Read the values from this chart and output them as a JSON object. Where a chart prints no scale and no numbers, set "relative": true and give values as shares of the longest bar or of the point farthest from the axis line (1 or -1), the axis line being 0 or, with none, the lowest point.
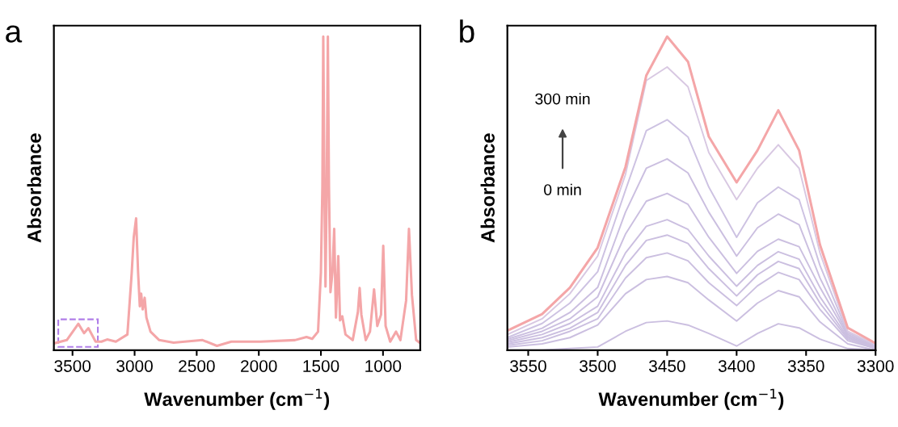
{
  "chart_data": [
    {
      "type": "line",
      "title": "a",
      "xlabel": "Wavenumber (cm$^{−1}$)",
      "ylabel": "Absorbance",
      "relative": true,
      "tick_labels": "x",
      "grid": false,
      "xlim": [
        3650,
        700
      ],
      "xticks": [
        3500,
        3000,
        2500,
        2000,
        1500,
        1000
      ],
      "x": [
        3640,
        3546,
        3453,
        3407,
        3372,
        3314,
        3267,
        3221,
        3151,
        3058,
        3023,
        3007,
        2988,
        2972,
        2958,
        2947,
        2935,
        2919,
        2905,
        2872,
        2802,
        2686,
        2453,
        2337,
        2221,
        1988,
        1709,
        1616,
        1570,
        1523,
        1500,
        1488,
        1481,
        1472,
        1463,
        1453,
        1444,
        1435,
        1423,
        1407,
        1393,
        1379,
        1360,
        1346,
        1328,
        1302,
        1244,
        1202,
        1188,
        1174,
        1139,
        1105,
        1072,
        1046,
        1016,
        998,
        979,
        942,
        895,
        860,
        814,
        791,
        767,
        733,
        700
      ],
      "series": [
        {
          "color": "#f4a6a8",
          "values": [
            0.0225,
            0.032,
            0.084,
            0.054,
            0.07,
            0.027,
            0.027,
            0.034,
            0.027,
            0.05,
            0.248,
            0.36,
            0.42,
            0.248,
            0.14,
            0.18,
            0.13,
            0.167,
            0.104,
            0.059,
            0.032,
            0.024,
            0.032,
            0.0135,
            0.027,
            0.027,
            0.032,
            0.042,
            0.036,
            0.059,
            0.248,
            0.52,
            1.0,
            0.52,
            0.203,
            0.52,
            1.0,
            0.52,
            0.185,
            0.248,
            0.387,
            0.104,
            0.3,
            0.095,
            0.108,
            0.05,
            0.032,
            0.122,
            0.198,
            0.113,
            0.032,
            0.059,
            0.194,
            0.077,
            0.113,
            0.333,
            0.077,
            0.027,
            0.059,
            0.032,
            0.158,
            0.387,
            0.176,
            0.032,
            0.0225
          ]
        }
      ]
    },
    {
      "type": "line",
      "title": "b",
      "xlabel": "Wavenumber (cm$^{−1}$)",
      "ylabel": "Absorbance",
      "relative": true,
      "tick_labels": "x",
      "grid": false,
      "xlim": [
        3565,
        3300
      ],
      "xticks": [
        3550,
        3500,
        3450,
        3400,
        3350,
        3300
      ],
      "annotations": [
        "300 min",
        "0 min"
      ],
      "x": [
        3565,
        3540,
        3520,
        3500,
        3480,
        3465,
        3450,
        3435,
        3420,
        3400,
        3385,
        3370,
        3355,
        3340,
        3320,
        3300
      ],
      "series": [
        {
          "color": "#cbbfe0",
          "values": [
            0,
            0,
            0.005,
            0.01,
            0.06,
            0.088,
            0.093,
            0.08,
            0.053,
            0.013,
            0.053,
            0.084,
            0.071,
            0.035,
            0.005,
            0
          ]
        },
        {
          "color": "#cbbfe0",
          "values": [
            0.01,
            0.02,
            0.04,
            0.08,
            0.18,
            0.225,
            0.235,
            0.215,
            0.16,
            0.093,
            0.15,
            0.19,
            0.17,
            0.09,
            0.02,
            0
          ]
        },
        {
          "color": "#cbbfe0",
          "values": [
            0.015,
            0.03,
            0.06,
            0.1,
            0.23,
            0.295,
            0.31,
            0.285,
            0.215,
            0.142,
            0.205,
            0.248,
            0.225,
            0.13,
            0.03,
            0.005
          ]
        },
        {
          "color": "#cbbfe0",
          "values": [
            0.02,
            0.04,
            0.07,
            0.12,
            0.27,
            0.35,
            0.367,
            0.34,
            0.26,
            0.173,
            0.24,
            0.283,
            0.26,
            0.15,
            0.035,
            0.005
          ]
        },
        {
          "color": "#cbbfe0",
          "values": [
            0.025,
            0.05,
            0.085,
            0.14,
            0.31,
            0.395,
            0.416,
            0.385,
            0.3,
            0.204,
            0.27,
            0.314,
            0.29,
            0.17,
            0.04,
            0.008
          ]
        },
        {
          "color": "#cbbfe0",
          "values": [
            0.03,
            0.06,
            0.1,
            0.17,
            0.37,
            0.475,
            0.5,
            0.465,
            0.36,
            0.245,
            0.315,
            0.354,
            0.33,
            0.2,
            0.045,
            0.01
          ]
        },
        {
          "color": "#cbbfe0",
          "values": [
            0.035,
            0.07,
            0.12,
            0.2,
            0.44,
            0.58,
            0.61,
            0.565,
            0.44,
            0.3,
            0.39,
            0.434,
            0.4,
            0.23,
            0.05,
            0.012
          ]
        },
        {
          "color": "#cdc2e2",
          "values": [
            0.04,
            0.085,
            0.15,
            0.25,
            0.51,
            0.7,
            0.735,
            0.68,
            0.52,
            0.36,
            0.47,
            0.52,
            0.48,
            0.27,
            0.055,
            0.015
          ]
        },
        {
          "color": "#d8c8e2",
          "values": [
            0.05,
            0.1,
            0.18,
            0.3,
            0.56,
            0.86,
            0.903,
            0.84,
            0.63,
            0.48,
            0.58,
            0.655,
            0.58,
            0.31,
            0.06,
            0.018
          ]
        },
        {
          "color": "#f4a6a8",
          "values": [
            0.062,
            0.115,
            0.199,
            0.327,
            0.584,
            0.876,
            1.0,
            0.92,
            0.681,
            0.535,
            0.637,
            0.765,
            0.637,
            0.336,
            0.071,
            0.022
          ]
        }
      ]
    }
  ]
}
